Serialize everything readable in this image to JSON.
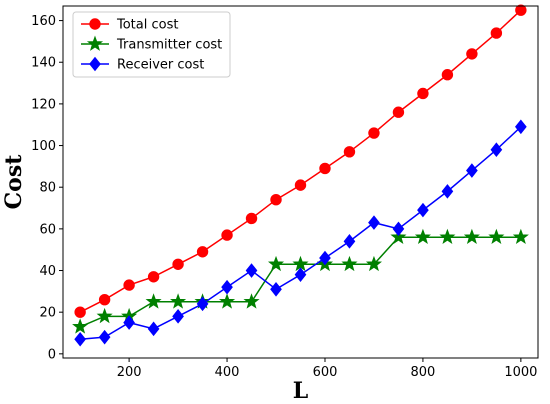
{
  "chart_data": {
    "type": "line",
    "xlabel": "L",
    "ylabel": "Cost",
    "xlim": [
      65,
      1035
    ],
    "ylim": [
      -2,
      167
    ],
    "xticks": [
      200,
      400,
      600,
      800,
      1000
    ],
    "yticks": [
      0,
      20,
      40,
      60,
      80,
      100,
      120,
      140,
      160
    ],
    "grid": false,
    "legend_position": "top-left",
    "x": [
      100,
      150,
      200,
      250,
      300,
      350,
      400,
      450,
      500,
      550,
      600,
      650,
      700,
      750,
      800,
      850,
      900,
      950,
      1000
    ],
    "series": [
      {
        "name": "Total cost",
        "color": "#ff0000",
        "marker": "circle",
        "values": [
          20,
          26,
          33,
          37,
          43,
          49,
          57,
          65,
          74,
          81,
          89,
          97,
          106,
          116,
          125,
          134,
          144,
          154,
          165
        ]
      },
      {
        "name": "Transmitter cost",
        "color": "#008000",
        "marker": "star",
        "values": [
          13,
          18,
          18,
          25,
          25,
          25,
          25,
          25,
          43,
          43,
          43,
          43,
          43,
          56,
          56,
          56,
          56,
          56,
          56
        ]
      },
      {
        "name": "Receiver cost",
        "color": "#0000ff",
        "marker": "diamond",
        "values": [
          7,
          8,
          15,
          12,
          18,
          24,
          32,
          40,
          31,
          38,
          46,
          54,
          63,
          60,
          69,
          78,
          88,
          98,
          109
        ]
      }
    ]
  }
}
